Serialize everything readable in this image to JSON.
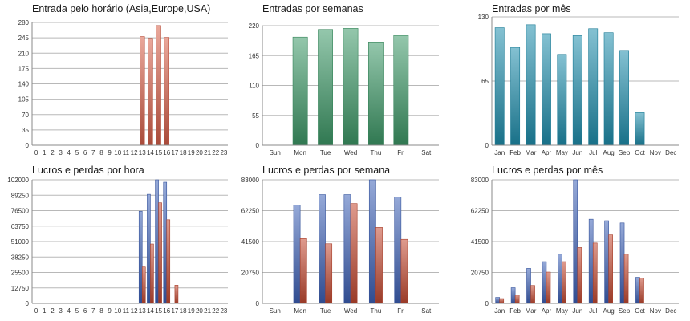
{
  "chart_data": [
    {
      "type": "bar",
      "title": "Entrada pelo horário (Asia,Europe,USA)",
      "categories": [
        "0",
        "1",
        "2",
        "3",
        "4",
        "5",
        "6",
        "7",
        "8",
        "9",
        "10",
        "11",
        "12",
        "13",
        "14",
        "15",
        "16",
        "17",
        "18",
        "19",
        "20",
        "21",
        "22",
        "23"
      ],
      "yticks": [
        "0",
        "35",
        "70",
        "105",
        "140",
        "175",
        "210",
        "245",
        "280"
      ],
      "ylim": [
        0,
        280
      ],
      "grid": true,
      "series": [
        {
          "color": "#d9604a",
          "values": [
            0,
            0,
            0,
            0,
            0,
            0,
            0,
            0,
            0,
            0,
            0,
            0,
            0,
            248,
            244,
            273,
            246,
            0,
            0,
            0,
            0,
            0,
            0,
            0
          ]
        }
      ]
    },
    {
      "type": "bar",
      "title": "Entradas por semanas",
      "categories": [
        "Sun",
        "Mon",
        "Tue",
        "Wed",
        "Thu",
        "Fri",
        "Sat"
      ],
      "yticks": [
        "0",
        "55",
        "110",
        "165",
        "220"
      ],
      "ylim": [
        0,
        220
      ],
      "grid": true,
      "series": [
        {
          "color": "#3d9a68",
          "values": [
            0,
            199,
            213,
            215,
            190,
            202,
            0
          ]
        }
      ]
    },
    {
      "type": "bar",
      "title": "Entradas por mês",
      "categories": [
        "Jan",
        "Feb",
        "Mar",
        "Apr",
        "May",
        "Jun",
        "Jul",
        "Aug",
        "Sep",
        "Oct",
        "Nov",
        "Dec"
      ],
      "yticks": [
        "0",
        "65",
        "130"
      ],
      "ylim": [
        0,
        130
      ],
      "grid": true,
      "series": [
        {
          "color": "#1f8fae",
          "values": [
            119,
            99,
            122,
            113,
            92,
            111,
            118,
            114,
            96,
            33,
            0,
            0
          ]
        }
      ]
    },
    {
      "type": "bar",
      "title": "Lucros e perdas por hora",
      "categories": [
        "0",
        "1",
        "2",
        "3",
        "4",
        "5",
        "6",
        "7",
        "8",
        "9",
        "10",
        "11",
        "12",
        "13",
        "14",
        "15",
        "16",
        "17",
        "18",
        "19",
        "20",
        "21",
        "22",
        "23"
      ],
      "yticks": [
        "0",
        "12750",
        "25500",
        "38250",
        "51000",
        "63750",
        "76500",
        "89250",
        "102000"
      ],
      "ylim": [
        0,
        102000
      ],
      "grid": true,
      "series": [
        {
          "color": "#3e62b8",
          "values": [
            0,
            0,
            0,
            0,
            0,
            0,
            0,
            0,
            0,
            0,
            0,
            0,
            0,
            76000,
            90000,
            102000,
            100000,
            0,
            0,
            0,
            0,
            0,
            0,
            0
          ]
        },
        {
          "color": "#c44a32",
          "values": [
            0,
            0,
            0,
            0,
            0,
            0,
            0,
            0,
            0,
            0,
            0,
            0,
            0,
            30000,
            49000,
            83000,
            69000,
            15000,
            0,
            0,
            0,
            0,
            0,
            0
          ]
        }
      ]
    },
    {
      "type": "bar",
      "title": "Lucros e perdas por semana",
      "categories": [
        "Sun",
        "Mon",
        "Tue",
        "Wed",
        "Thu",
        "Fri",
        "Sat"
      ],
      "yticks": [
        "0",
        "20750",
        "41500",
        "62250",
        "83000"
      ],
      "ylim": [
        0,
        83000
      ],
      "grid": true,
      "series": [
        {
          "color": "#3e62b8",
          "values": [
            0,
            66000,
            73000,
            73000,
            83000,
            71500,
            0
          ]
        },
        {
          "color": "#c44a32",
          "values": [
            0,
            43500,
            40000,
            67000,
            51000,
            43000,
            0
          ]
        }
      ]
    },
    {
      "type": "bar",
      "title": "Lucros e perdas por mês",
      "categories": [
        "Jan",
        "Feb",
        "Mar",
        "Apr",
        "May",
        "Jun",
        "Jul",
        "Aug",
        "Sep",
        "Oct",
        "Nov",
        "Dec"
      ],
      "yticks": [
        "0",
        "20750",
        "41500",
        "62250",
        "83000"
      ],
      "ylim": [
        0,
        83000
      ],
      "grid": true,
      "series": [
        {
          "color": "#3e62b8",
          "values": [
            4000,
            10500,
            23500,
            28000,
            33000,
            83000,
            56500,
            55500,
            54000,
            17500,
            0,
            0
          ]
        },
        {
          "color": "#c44a32",
          "values": [
            3200,
            5500,
            12000,
            21000,
            28000,
            37500,
            40500,
            46000,
            33000,
            17000,
            0,
            0
          ]
        }
      ]
    }
  ]
}
